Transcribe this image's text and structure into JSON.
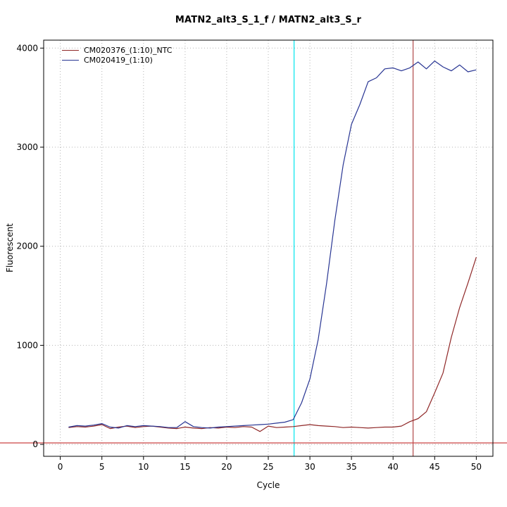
{
  "chart_data": {
    "type": "line",
    "title": "MATN2_alt3_S_1_f / MATN2_alt3_S_r",
    "xlabel": "Cycle",
    "ylabel": "Fluorescent",
    "xlim": [
      0,
      50
    ],
    "ylim": [
      0,
      4000
    ],
    "x_ticks": [
      0,
      5,
      10,
      15,
      20,
      25,
      30,
      35,
      40,
      45,
      50
    ],
    "y_ticks": [
      0,
      1000,
      2000,
      3000,
      4000
    ],
    "grid": "dotted",
    "grid_color": "#b4b4b4",
    "axis_color": "#000000",
    "legend_position": "top-left",
    "series": [
      {
        "name": "CM020376_(1:10)_NTC",
        "color": "#8f2727",
        "x": [
          1,
          2,
          3,
          4,
          5,
          6,
          7,
          8,
          9,
          10,
          11,
          12,
          13,
          14,
          15,
          16,
          17,
          18,
          19,
          20,
          21,
          22,
          23,
          24,
          25,
          26,
          27,
          28,
          29,
          30,
          31,
          32,
          33,
          34,
          35,
          36,
          37,
          38,
          39,
          40,
          41,
          42,
          43,
          44,
          45,
          46,
          47,
          48,
          49,
          50
        ],
        "values": [
          170,
          180,
          175,
          185,
          200,
          160,
          175,
          185,
          170,
          180,
          185,
          175,
          165,
          160,
          175,
          165,
          160,
          170,
          165,
          175,
          170,
          180,
          175,
          130,
          185,
          170,
          175,
          180,
          190,
          200,
          190,
          185,
          180,
          170,
          175,
          170,
          165,
          170,
          175,
          175,
          185,
          230,
          260,
          330,
          520,
          720,
          1080,
          1380,
          1630,
          1890
        ]
      },
      {
        "name": "CM020419_(1:10)",
        "color": "#283593",
        "x": [
          1,
          2,
          3,
          4,
          5,
          6,
          7,
          8,
          9,
          10,
          11,
          12,
          13,
          14,
          15,
          16,
          17,
          18,
          19,
          20,
          21,
          22,
          23,
          24,
          25,
          26,
          27,
          28,
          29,
          30,
          31,
          32,
          33,
          34,
          35,
          36,
          37,
          38,
          39,
          40,
          41,
          42,
          43,
          44,
          45,
          46,
          47,
          48,
          49,
          50
        ],
        "values": [
          175,
          190,
          185,
          195,
          210,
          175,
          165,
          190,
          180,
          190,
          185,
          180,
          170,
          170,
          230,
          180,
          170,
          165,
          175,
          180,
          185,
          190,
          195,
          200,
          205,
          215,
          225,
          250,
          420,
          660,
          1060,
          1620,
          2260,
          2820,
          3230,
          3430,
          3660,
          3700,
          3790,
          3800,
          3770,
          3800,
          3860,
          3790,
          3870,
          3810,
          3770,
          3830,
          3760,
          3780
        ]
      }
    ],
    "vlines": [
      {
        "name": "crossing-point-blue",
        "x": 28.1,
        "color": "#00e5ee"
      },
      {
        "name": "crossing-point-red",
        "x": 42.4,
        "color": "#b04a4a"
      }
    ],
    "hline": {
      "name": "threshold-line",
      "y": 15,
      "color": "#cc4444",
      "full_width": true
    }
  }
}
